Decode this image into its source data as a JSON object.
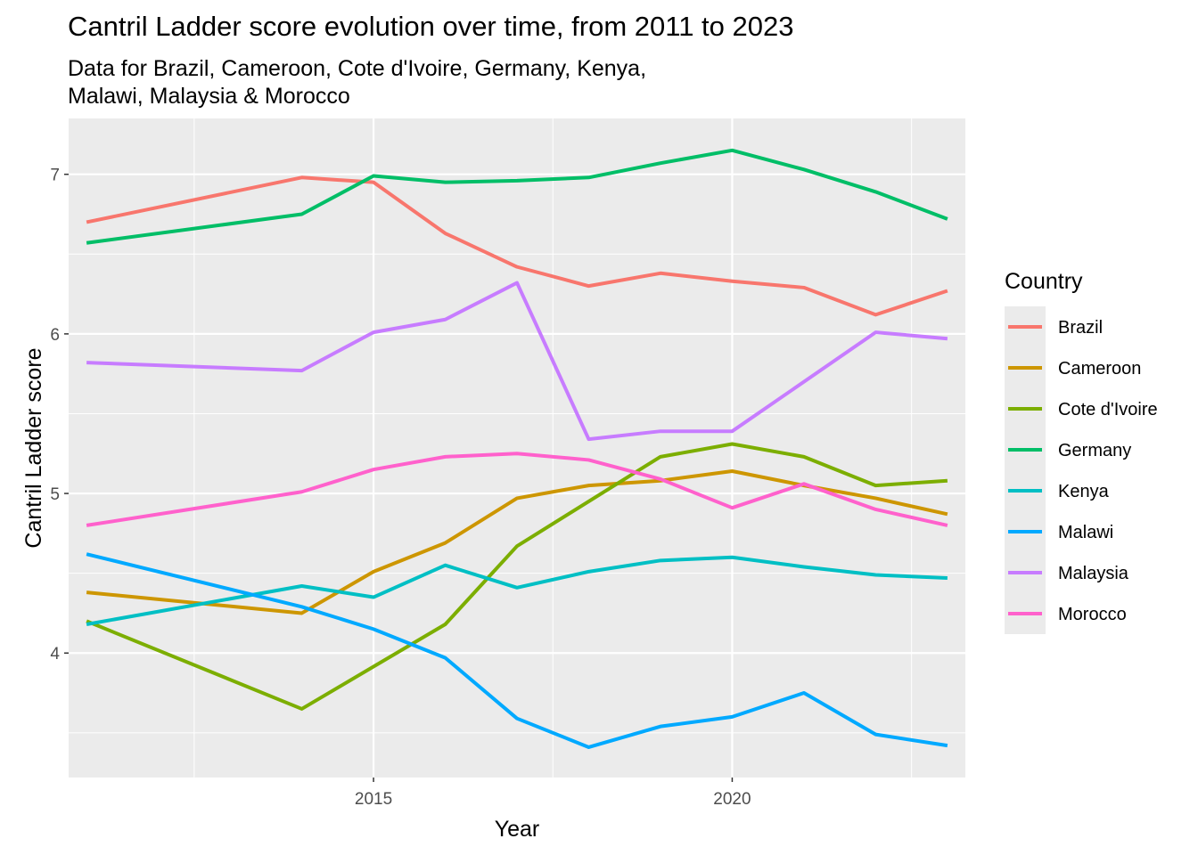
{
  "chart_data": {
    "type": "line",
    "title": "Cantril Ladder score evolution over time, from 2011 to 2023",
    "subtitle_lines": [
      "Data for Brazil, Cameroon, Cote d'Ivoire, Germany, Kenya,",
      "Malawi, Malaysia & Morocco"
    ],
    "xlabel": "Year",
    "ylabel": "Cantril Ladder score",
    "xlim": [
      2010.75,
      2023.25
    ],
    "ylim": [
      3.22,
      7.35
    ],
    "x_ticks": [
      2015,
      2020
    ],
    "x_minor_ticks": [
      2012.5,
      2017.5,
      2022.5
    ],
    "y_ticks": [
      4,
      5,
      6,
      7
    ],
    "y_minor_ticks": [
      3.5,
      4.5,
      5.5,
      6.5
    ],
    "grid": true,
    "legend_title": "Country",
    "legend_position": "right",
    "background_color": "#ebebeb",
    "series": [
      {
        "name": "Brazil",
        "color": "#F8766D",
        "points": [
          [
            2011,
            6.7
          ],
          [
            2014,
            6.98
          ],
          [
            2015,
            6.95
          ],
          [
            2016,
            6.63
          ],
          [
            2017,
            6.42
          ],
          [
            2018,
            6.3
          ],
          [
            2019,
            6.38
          ],
          [
            2020,
            6.33
          ],
          [
            2021,
            6.29
          ],
          [
            2022,
            6.12
          ],
          [
            2023,
            6.27
          ]
        ]
      },
      {
        "name": "Cameroon",
        "color": "#CD9600",
        "points": [
          [
            2011,
            4.38
          ],
          [
            2014,
            4.25
          ],
          [
            2015,
            4.51
          ],
          [
            2016,
            4.69
          ],
          [
            2017,
            4.97
          ],
          [
            2018,
            5.05
          ],
          [
            2019,
            5.08
          ],
          [
            2020,
            5.14
          ],
          [
            2021,
            5.05
          ],
          [
            2022,
            4.97
          ],
          [
            2023,
            4.87
          ]
        ]
      },
      {
        "name": "Cote d'Ivoire",
        "color": "#7CAE00",
        "points": [
          [
            2011,
            4.2
          ],
          [
            2014,
            3.65
          ],
          [
            2016,
            4.18
          ],
          [
            2017,
            4.67
          ],
          [
            2019,
            5.23
          ],
          [
            2020,
            5.31
          ],
          [
            2021,
            5.23
          ],
          [
            2022,
            5.05
          ],
          [
            2023,
            5.08
          ]
        ]
      },
      {
        "name": "Germany",
        "color": "#00BE67",
        "points": [
          [
            2011,
            6.57
          ],
          [
            2014,
            6.75
          ],
          [
            2015,
            6.99
          ],
          [
            2016,
            6.95
          ],
          [
            2017,
            6.96
          ],
          [
            2018,
            6.98
          ],
          [
            2019,
            7.07
          ],
          [
            2020,
            7.15
          ],
          [
            2021,
            7.03
          ],
          [
            2022,
            6.89
          ],
          [
            2023,
            6.72
          ]
        ]
      },
      {
        "name": "Kenya",
        "color": "#00BFC4",
        "points": [
          [
            2011,
            4.18
          ],
          [
            2014,
            4.42
          ],
          [
            2015,
            4.35
          ],
          [
            2016,
            4.55
          ],
          [
            2017,
            4.41
          ],
          [
            2018,
            4.51
          ],
          [
            2019,
            4.58
          ],
          [
            2020,
            4.6
          ],
          [
            2021,
            4.54
          ],
          [
            2022,
            4.49
          ],
          [
            2023,
            4.47
          ]
        ]
      },
      {
        "name": "Malawi",
        "color": "#00A9FF",
        "points": [
          [
            2011,
            4.62
          ],
          [
            2014,
            4.29
          ],
          [
            2015,
            4.15
          ],
          [
            2016,
            3.97
          ],
          [
            2017,
            3.59
          ],
          [
            2018,
            3.41
          ],
          [
            2019,
            3.54
          ],
          [
            2020,
            3.6
          ],
          [
            2021,
            3.75
          ],
          [
            2022,
            3.49
          ],
          [
            2023,
            3.42
          ]
        ]
      },
      {
        "name": "Malaysia",
        "color": "#C77CFF",
        "points": [
          [
            2011,
            5.82
          ],
          [
            2014,
            5.77
          ],
          [
            2015,
            6.01
          ],
          [
            2016,
            6.09
          ],
          [
            2017,
            6.32
          ],
          [
            2018,
            5.34
          ],
          [
            2019,
            5.39
          ],
          [
            2020,
            5.39
          ],
          [
            2022,
            6.01
          ],
          [
            2023,
            5.97
          ]
        ]
      },
      {
        "name": "Morocco",
        "color": "#FF61CC",
        "points": [
          [
            2011,
            4.8
          ],
          [
            2014,
            5.01
          ],
          [
            2015,
            5.15
          ],
          [
            2016,
            5.23
          ],
          [
            2017,
            5.25
          ],
          [
            2018,
            5.21
          ],
          [
            2019,
            5.09
          ],
          [
            2020,
            4.91
          ],
          [
            2021,
            5.06
          ],
          [
            2022,
            4.9
          ],
          [
            2023,
            4.8
          ]
        ]
      }
    ]
  }
}
